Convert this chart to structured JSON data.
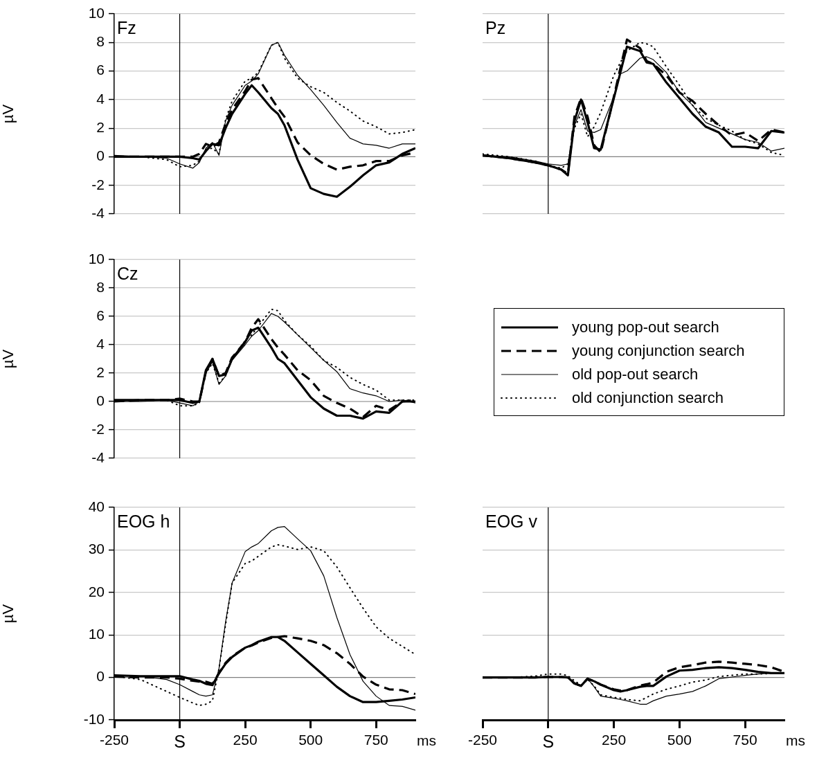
{
  "chart_data": [
    {
      "type": "line",
      "title": "Fz",
      "ylabel": "µV",
      "xlim": [
        -250,
        900
      ],
      "ylim": [
        -4,
        10
      ],
      "yticks": [
        -4,
        -2,
        0,
        2,
        4,
        6,
        8,
        10
      ],
      "grid": "y",
      "tick_labels": "y",
      "legend": "bottom right",
      "ref_lines": [
        {
          "axis": "x",
          "value": 0,
          "color": "#000000"
        },
        {
          "axis": "y",
          "value": 0,
          "color": "#808080"
        }
      ],
      "x": [
        -250,
        -150,
        -50,
        0,
        50,
        75,
        100,
        125,
        150,
        175,
        200,
        250,
        275,
        300,
        350,
        375,
        400,
        450,
        500,
        550,
        600,
        650,
        700,
        750,
        800,
        850,
        900
      ],
      "series": [
        {
          "name": "young pop-out search",
          "color": "#000000",
          "line_style": "solid",
          "values": [
            0,
            0,
            0,
            0,
            -0.1,
            -0.2,
            0.4,
            0.9,
            0.8,
            2.0,
            3.0,
            4.4,
            5.0,
            4.5,
            3.4,
            3.0,
            2.2,
            -0.2,
            -2.2,
            -2.6,
            -2.8,
            -2.1,
            -1.3,
            -0.6,
            -0.4,
            0.2,
            0.6
          ]
        },
        {
          "name": "young conjunction search",
          "color": "#000000",
          "line_style": "dashed",
          "values": [
            0,
            0,
            0,
            0,
            0,
            0.2,
            0.9,
            0.7,
            1.0,
            2.3,
            3.3,
            4.6,
            5.4,
            5.5,
            4.1,
            3.4,
            2.8,
            1.0,
            0.1,
            -0.5,
            -0.9,
            -0.7,
            -0.6,
            -0.3,
            -0.3,
            0.1,
            0.3
          ]
        },
        {
          "name": "old pop-out search",
          "color": "#000000",
          "line_style": "solid",
          "values": [
            0.1,
            0,
            -0.1,
            -0.5,
            -0.8,
            -0.4,
            0.6,
            1.0,
            0.1,
            2.5,
            3.6,
            5.0,
            5.3,
            5.8,
            7.8,
            8.0,
            7.1,
            5.7,
            4.7,
            3.6,
            2.4,
            1.3,
            0.9,
            0.8,
            0.6,
            0.9,
            0.9
          ]
        },
        {
          "name": "old conjunction search",
          "color": "#000000",
          "line_style": "dotted",
          "values": [
            0,
            0,
            -0.2,
            -0.7,
            -0.6,
            -0.3,
            0.5,
            0.6,
            0.2,
            2.6,
            3.9,
            5.3,
            5.5,
            5.9,
            7.8,
            8.0,
            6.9,
            5.5,
            4.9,
            4.5,
            3.8,
            3.2,
            2.5,
            2.1,
            1.6,
            1.7,
            1.9
          ]
        }
      ]
    },
    {
      "type": "line",
      "title": "Pz",
      "xlim": [
        -250,
        900
      ],
      "ylim": [
        -4,
        10
      ],
      "yticks": [
        -4,
        -2,
        0,
        2,
        4,
        6,
        8,
        10
      ],
      "grid": "y",
      "tick_labels": false,
      "ref_lines": [
        {
          "axis": "x",
          "value": 0,
          "color": "#000000"
        },
        {
          "axis": "y",
          "value": 0,
          "color": "#808080"
        }
      ],
      "x": [
        -250,
        -150,
        -50,
        0,
        50,
        75,
        100,
        125,
        150,
        175,
        200,
        250,
        275,
        300,
        350,
        375,
        400,
        450,
        500,
        550,
        600,
        650,
        700,
        750,
        800,
        850,
        900
      ],
      "series": [
        {
          "color": "#000000",
          "line_style": "solid",
          "values": [
            0.1,
            -0.1,
            -0.4,
            -0.6,
            -0.9,
            -1.3,
            2.5,
            4.0,
            2.4,
            0.6,
            0.5,
            4.1,
            5.9,
            7.7,
            7.4,
            6.6,
            6.5,
            5.2,
            4.1,
            3.0,
            2.1,
            1.7,
            0.7,
            0.7,
            0.6,
            1.8,
            1.7
          ]
        },
        {
          "color": "#000000",
          "line_style": "dashed",
          "values": [
            0.1,
            -0.1,
            -0.4,
            -0.6,
            -0.9,
            -1.2,
            2.8,
            4.1,
            2.8,
            0.8,
            0.3,
            4.2,
            6.2,
            8.2,
            7.6,
            6.7,
            6.5,
            5.7,
            4.5,
            3.9,
            3.0,
            2.2,
            1.5,
            1.7,
            1.1,
            1.9,
            1.7
          ]
        },
        {
          "color": "#000000",
          "line_style": "solid",
          "values": [
            0.1,
            0,
            -0.3,
            -0.5,
            -0.6,
            -0.5,
            2.2,
            3.3,
            1.8,
            1.7,
            1.9,
            4.2,
            5.8,
            6.0,
            6.9,
            7.0,
            6.8,
            5.9,
            4.5,
            3.6,
            2.4,
            2.0,
            1.6,
            1.2,
            1.0,
            0.4,
            0.6
          ]
        },
        {
          "color": "#000000",
          "line_style": "dotted",
          "values": [
            0.2,
            0,
            -0.3,
            -0.6,
            -0.8,
            -0.5,
            2.0,
            3.0,
            1.4,
            2.1,
            3.1,
            5.7,
            6.6,
            7.4,
            8.0,
            7.9,
            7.7,
            6.3,
            5.0,
            3.6,
            2.7,
            2.2,
            1.8,
            1.2,
            0.9,
            0.3,
            0.1
          ]
        }
      ]
    },
    {
      "type": "line",
      "title": "Cz",
      "ylabel": "µV",
      "xlim": [
        -250,
        900
      ],
      "ylim": [
        -4,
        10
      ],
      "yticks": [
        -4,
        -2,
        0,
        2,
        4,
        6,
        8,
        10
      ],
      "grid": "y",
      "tick_labels": "y",
      "ref_lines": [
        {
          "axis": "x",
          "value": 0,
          "color": "#000000"
        },
        {
          "axis": "y",
          "value": 0,
          "color": "#808080"
        }
      ],
      "x": [
        -250,
        -150,
        -50,
        0,
        50,
        75,
        100,
        125,
        150,
        175,
        200,
        250,
        275,
        300,
        350,
        375,
        400,
        450,
        500,
        550,
        600,
        650,
        700,
        750,
        800,
        850,
        900
      ],
      "series": [
        {
          "color": "#000000",
          "line_style": "solid",
          "values": [
            0.1,
            0.1,
            0.1,
            0.1,
            -0.1,
            0,
            2.2,
            3.0,
            1.8,
            1.9,
            3.0,
            4.2,
            5.0,
            5.2,
            3.8,
            3.0,
            2.7,
            1.5,
            0.3,
            -0.5,
            -1.0,
            -1.0,
            -1.2,
            -0.7,
            -0.8,
            0,
            0
          ]
        },
        {
          "color": "#000000",
          "line_style": "dashed",
          "values": [
            0,
            0.1,
            0.1,
            0.2,
            0,
            0,
            2.1,
            3.0,
            1.8,
            2.0,
            3.1,
            4.2,
            5.2,
            5.8,
            4.4,
            3.8,
            3.3,
            2.2,
            1.5,
            0.4,
            -0.1,
            -0.5,
            -1.1,
            -0.3,
            -0.6,
            0,
            0.1
          ]
        },
        {
          "color": "#000000",
          "line_style": "solid",
          "values": [
            0,
            0,
            0.1,
            -0.1,
            -0.3,
            0,
            2.0,
            2.8,
            1.2,
            1.8,
            2.9,
            4.0,
            4.6,
            5.0,
            6.2,
            6.0,
            5.6,
            4.7,
            3.8,
            2.9,
            2.1,
            0.9,
            0.6,
            0.4,
            0,
            0.1,
            -0.1
          ]
        },
        {
          "color": "#000000",
          "line_style": "dotted",
          "values": [
            0,
            0.1,
            0.1,
            -0.3,
            -0.3,
            -0.1,
            2.0,
            2.7,
            1.3,
            1.8,
            3.0,
            4.3,
            4.7,
            5.3,
            6.5,
            6.4,
            5.7,
            4.7,
            3.9,
            2.9,
            2.4,
            1.7,
            1.2,
            0.8,
            0.1,
            0.1,
            0.1
          ]
        }
      ]
    },
    {
      "type": "line",
      "title": "EOG h",
      "ylabel": "µV",
      "xlabel": "ms",
      "xlim": [
        -250,
        900
      ],
      "xticks": [
        -250,
        {
          "value": 0,
          "label": "S"
        },
        250,
        500,
        750
      ],
      "ylim": [
        -10,
        40
      ],
      "yticks": [
        -10,
        0,
        10,
        20,
        30,
        40
      ],
      "grid": "y",
      "ref_lines": [
        {
          "axis": "x",
          "value": 0,
          "color": "#000000"
        },
        {
          "axis": "y",
          "value": 0,
          "color": "#808080"
        }
      ],
      "x": [
        -250,
        -150,
        -50,
        0,
        50,
        75,
        100,
        125,
        150,
        175,
        200,
        250,
        275,
        300,
        350,
        375,
        400,
        450,
        500,
        550,
        600,
        650,
        700,
        750,
        800,
        850,
        900
      ],
      "series": [
        {
          "color": "#000000",
          "line_style": "solid",
          "values": [
            0.5,
            0.3,
            0.3,
            0.3,
            -0.5,
            -0.8,
            -1.5,
            -1.8,
            1.0,
            3.2,
            4.8,
            7.0,
            7.6,
            8.4,
            9.5,
            9.5,
            8.6,
            5.9,
            3.2,
            0.5,
            -2.2,
            -4.4,
            -5.8,
            -5.8,
            -5.5,
            -5.2,
            -4.7
          ]
        },
        {
          "color": "#000000",
          "line_style": "dashed",
          "values": [
            0.2,
            0,
            0,
            -0.3,
            -0.8,
            -1.0,
            -1.0,
            -1.5,
            1.0,
            3.4,
            5.0,
            7.0,
            7.5,
            8.2,
            9.3,
            9.5,
            9.7,
            9.2,
            8.6,
            7.6,
            5.7,
            3.2,
            0.2,
            -1.7,
            -2.8,
            -3.0,
            -3.9
          ]
        },
        {
          "color": "#000000",
          "line_style": "solid",
          "values": [
            0.5,
            0.3,
            -0.5,
            -1.7,
            -3.3,
            -4.1,
            -4.4,
            -4.1,
            2.1,
            13.0,
            22.2,
            29.6,
            30.7,
            31.5,
            34.5,
            35.3,
            35.5,
            32.6,
            29.8,
            23.9,
            14.1,
            5.4,
            -0.9,
            -4.4,
            -6.6,
            -6.8,
            -7.7
          ]
        },
        {
          "color": "#000000",
          "line_style": "dotted",
          "values": [
            0.3,
            -0.5,
            -3.3,
            -4.7,
            -6.0,
            -6.6,
            -6.3,
            -5.5,
            2.1,
            12.4,
            22.2,
            26.8,
            27.4,
            28.5,
            30.7,
            31.2,
            30.9,
            30.1,
            30.7,
            29.8,
            26.0,
            21.1,
            16.3,
            11.9,
            9.2,
            7.3,
            5.4
          ]
        }
      ]
    },
    {
      "type": "line",
      "title": "EOG v",
      "xlabel": "ms",
      "xlim": [
        -250,
        900
      ],
      "xticks": [
        -250,
        {
          "value": 0,
          "label": "S"
        },
        250,
        500,
        750
      ],
      "ylim": [
        -10,
        40
      ],
      "yticks": [
        -10,
        0,
        10,
        20,
        30,
        40
      ],
      "grid": "y",
      "tick_labels": "x",
      "ref_lines": [
        {
          "axis": "x",
          "value": 0,
          "color": "#000000"
        },
        {
          "axis": "y",
          "value": 0,
          "color": "#808080"
        }
      ],
      "x": [
        -250,
        -150,
        -50,
        0,
        50,
        75,
        100,
        125,
        150,
        175,
        200,
        250,
        275,
        300,
        350,
        375,
        400,
        450,
        500,
        550,
        600,
        650,
        700,
        750,
        800,
        850,
        900
      ],
      "series": [
        {
          "color": "#000000",
          "line_style": "solid",
          "values": [
            0,
            0,
            0,
            0.1,
            0.1,
            0,
            -1.4,
            -2.0,
            -0.3,
            -0.9,
            -1.7,
            -3.0,
            -3.3,
            -3.0,
            -2.2,
            -2.0,
            -2.0,
            0.2,
            1.6,
            1.8,
            2.2,
            2.4,
            2.2,
            1.8,
            1.3,
            1.0,
            1.0
          ]
        },
        {
          "color": "#000000",
          "line_style": "dashed",
          "values": [
            0,
            0,
            0,
            0.1,
            0.1,
            0,
            -1.4,
            -2.0,
            -0.3,
            -0.9,
            -1.7,
            -2.8,
            -3.1,
            -3.0,
            -1.9,
            -1.6,
            -1.2,
            1.3,
            2.4,
            2.9,
            3.5,
            3.7,
            3.5,
            3.2,
            2.9,
            2.4,
            1.3
          ]
        },
        {
          "color": "#000000",
          "line_style": "solid",
          "values": [
            0,
            0,
            0,
            0.1,
            0.1,
            0,
            -1.5,
            -2.0,
            -0.3,
            -2.2,
            -4.4,
            -4.9,
            -5.2,
            -5.5,
            -6.3,
            -6.3,
            -5.5,
            -4.4,
            -3.9,
            -3.3,
            -2.0,
            -0.3,
            0.1,
            0.5,
            0.8,
            1.0,
            1.1
          ]
        },
        {
          "color": "#000000",
          "line_style": "dotted",
          "values": [
            0,
            0,
            0.3,
            0.8,
            0.8,
            0.4,
            -0.8,
            -1.8,
            -0.5,
            -2.0,
            -4.1,
            -4.7,
            -4.9,
            -5.2,
            -5.5,
            -4.7,
            -3.9,
            -2.8,
            -2.0,
            -1.1,
            -0.6,
            0.2,
            0.5,
            0.8,
            0.8,
            0.9,
            1.0
          ]
        }
      ]
    }
  ]
}
